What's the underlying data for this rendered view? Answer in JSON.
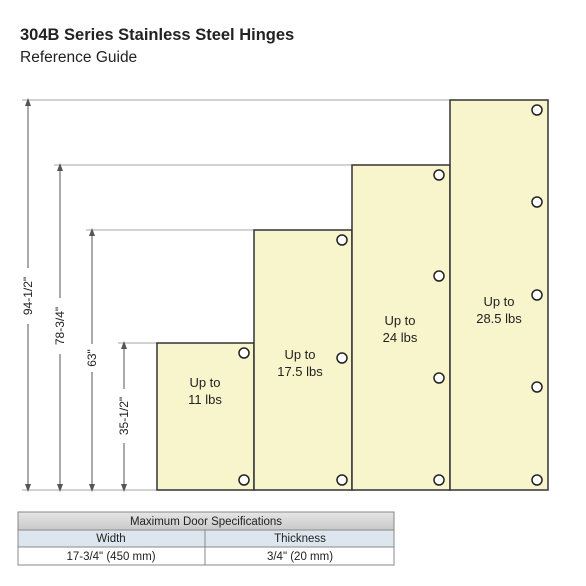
{
  "header": {
    "title": "304B Series Stainless Steel Hinges",
    "subtitle": "Reference Guide"
  },
  "dimensions": [
    "94-1/2\"",
    "78-3/4\"",
    "63\"",
    "35-1/2\""
  ],
  "doors": [
    {
      "lines": [
        "Up to",
        "11 lbs"
      ]
    },
    {
      "lines": [
        "Up to",
        "17.5 lbs"
      ]
    },
    {
      "lines": [
        "Up to",
        "24 lbs"
      ]
    },
    {
      "lines": [
        "Up to",
        "28.5 lbs"
      ]
    }
  ],
  "table": {
    "title": "Maximum Door Specifications",
    "columns": [
      "Width",
      "Thickness"
    ],
    "rows": [
      [
        "17-3/4\" (450 mm)",
        "3/4\" (20 mm)"
      ]
    ]
  }
}
